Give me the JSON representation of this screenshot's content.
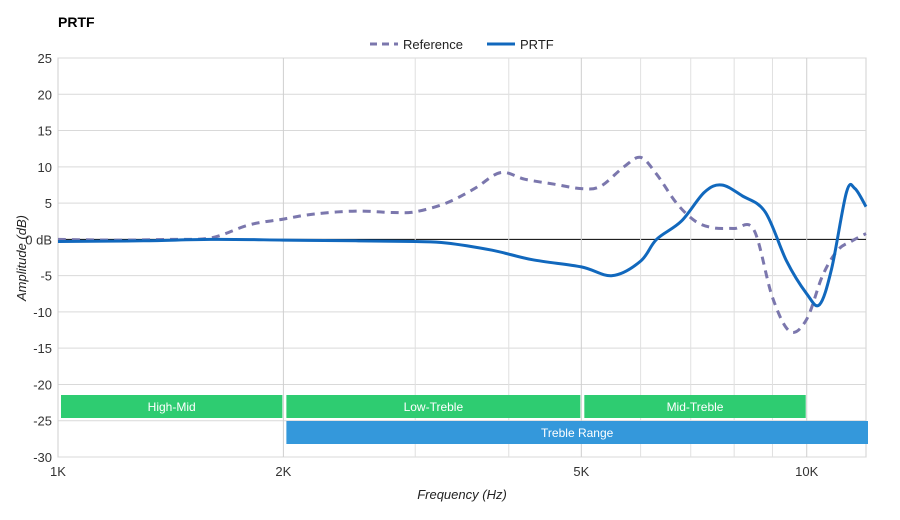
{
  "chart_data": {
    "type": "line",
    "title": "PRTF",
    "xlabel": "Frequency (Hz)",
    "ylabel": "Amplitude (dB)",
    "x_scale": "log",
    "xlim": [
      1000,
      12000
    ],
    "ylim": [
      -30,
      25
    ],
    "x_ticks": [
      {
        "value": 1000,
        "label": "1K"
      },
      {
        "value": 2000,
        "label": "2K"
      },
      {
        "value": 5000,
        "label": "5K"
      },
      {
        "value": 10000,
        "label": "10K"
      }
    ],
    "x_minor_grid": [
      3000,
      4000,
      6000,
      7000,
      8000,
      9000
    ],
    "y_ticks": [
      25,
      20,
      15,
      10,
      5,
      0,
      -5,
      -10,
      -15,
      -20,
      -25,
      -30
    ],
    "y_tick_labels": [
      "25",
      "20",
      "15",
      "10",
      "5",
      "0 dB",
      "-5",
      "-10",
      "-15",
      "-20",
      "-25",
      "-30"
    ],
    "grid": true,
    "legend_position": "top-center",
    "series": [
      {
        "name": "Reference",
        "color": "#7b77ad",
        "style": "dashed",
        "points": [
          [
            1000,
            0
          ],
          [
            1200,
            -0.1
          ],
          [
            1400,
            0
          ],
          [
            1600,
            0.2
          ],
          [
            1800,
            2
          ],
          [
            2000,
            2.8
          ],
          [
            2200,
            3.5
          ],
          [
            2500,
            3.9
          ],
          [
            2800,
            3.7
          ],
          [
            3000,
            3.8
          ],
          [
            3300,
            5
          ],
          [
            3600,
            7
          ],
          [
            3900,
            9.2
          ],
          [
            4200,
            8.3
          ],
          [
            4600,
            7.6
          ],
          [
            5000,
            7
          ],
          [
            5300,
            7.3
          ],
          [
            5700,
            10
          ],
          [
            6000,
            11.3
          ],
          [
            6300,
            9
          ],
          [
            6700,
            5
          ],
          [
            7100,
            2.5
          ],
          [
            7500,
            1.6
          ],
          [
            8000,
            1.5
          ],
          [
            8500,
            1.3
          ],
          [
            9000,
            -8
          ],
          [
            9500,
            -12.7
          ],
          [
            10000,
            -11
          ],
          [
            10500,
            -5
          ],
          [
            11000,
            -1.5
          ],
          [
            11500,
            -0.2
          ],
          [
            12000,
            0.8
          ]
        ]
      },
      {
        "name": "PRTF",
        "color": "#1168bd",
        "style": "solid",
        "points": [
          [
            1000,
            -0.3
          ],
          [
            1300,
            -0.2
          ],
          [
            1600,
            0
          ],
          [
            2000,
            -0.1
          ],
          [
            2500,
            -0.2
          ],
          [
            3000,
            -0.3
          ],
          [
            3300,
            -0.5
          ],
          [
            3800,
            -1.5
          ],
          [
            4300,
            -2.8
          ],
          [
            5000,
            -3.8
          ],
          [
            5500,
            -5
          ],
          [
            6000,
            -3
          ],
          [
            6300,
            0
          ],
          [
            6800,
            2.5
          ],
          [
            7300,
            6.5
          ],
          [
            7700,
            7.5
          ],
          [
            8200,
            6
          ],
          [
            8800,
            3.8
          ],
          [
            9400,
            -3
          ],
          [
            10000,
            -7.5
          ],
          [
            10400,
            -9
          ],
          [
            10800,
            -4
          ],
          [
            11300,
            6.5
          ],
          [
            11600,
            7
          ],
          [
            12000,
            4.5
          ]
        ]
      }
    ],
    "ranges": [
      {
        "label": "High-Mid",
        "from": 1000,
        "to": 2000,
        "row": 0,
        "color": "#2ecc71"
      },
      {
        "label": "Low-Treble",
        "from": 2000,
        "to": 5000,
        "row": 0,
        "color": "#2ecc71"
      },
      {
        "label": "Mid-Treble",
        "from": 5000,
        "to": 10000,
        "row": 0,
        "color": "#2ecc71"
      },
      {
        "label": "Treble Range",
        "from": 2000,
        "to": 12000,
        "row": 1,
        "color": "#3498db"
      }
    ]
  }
}
